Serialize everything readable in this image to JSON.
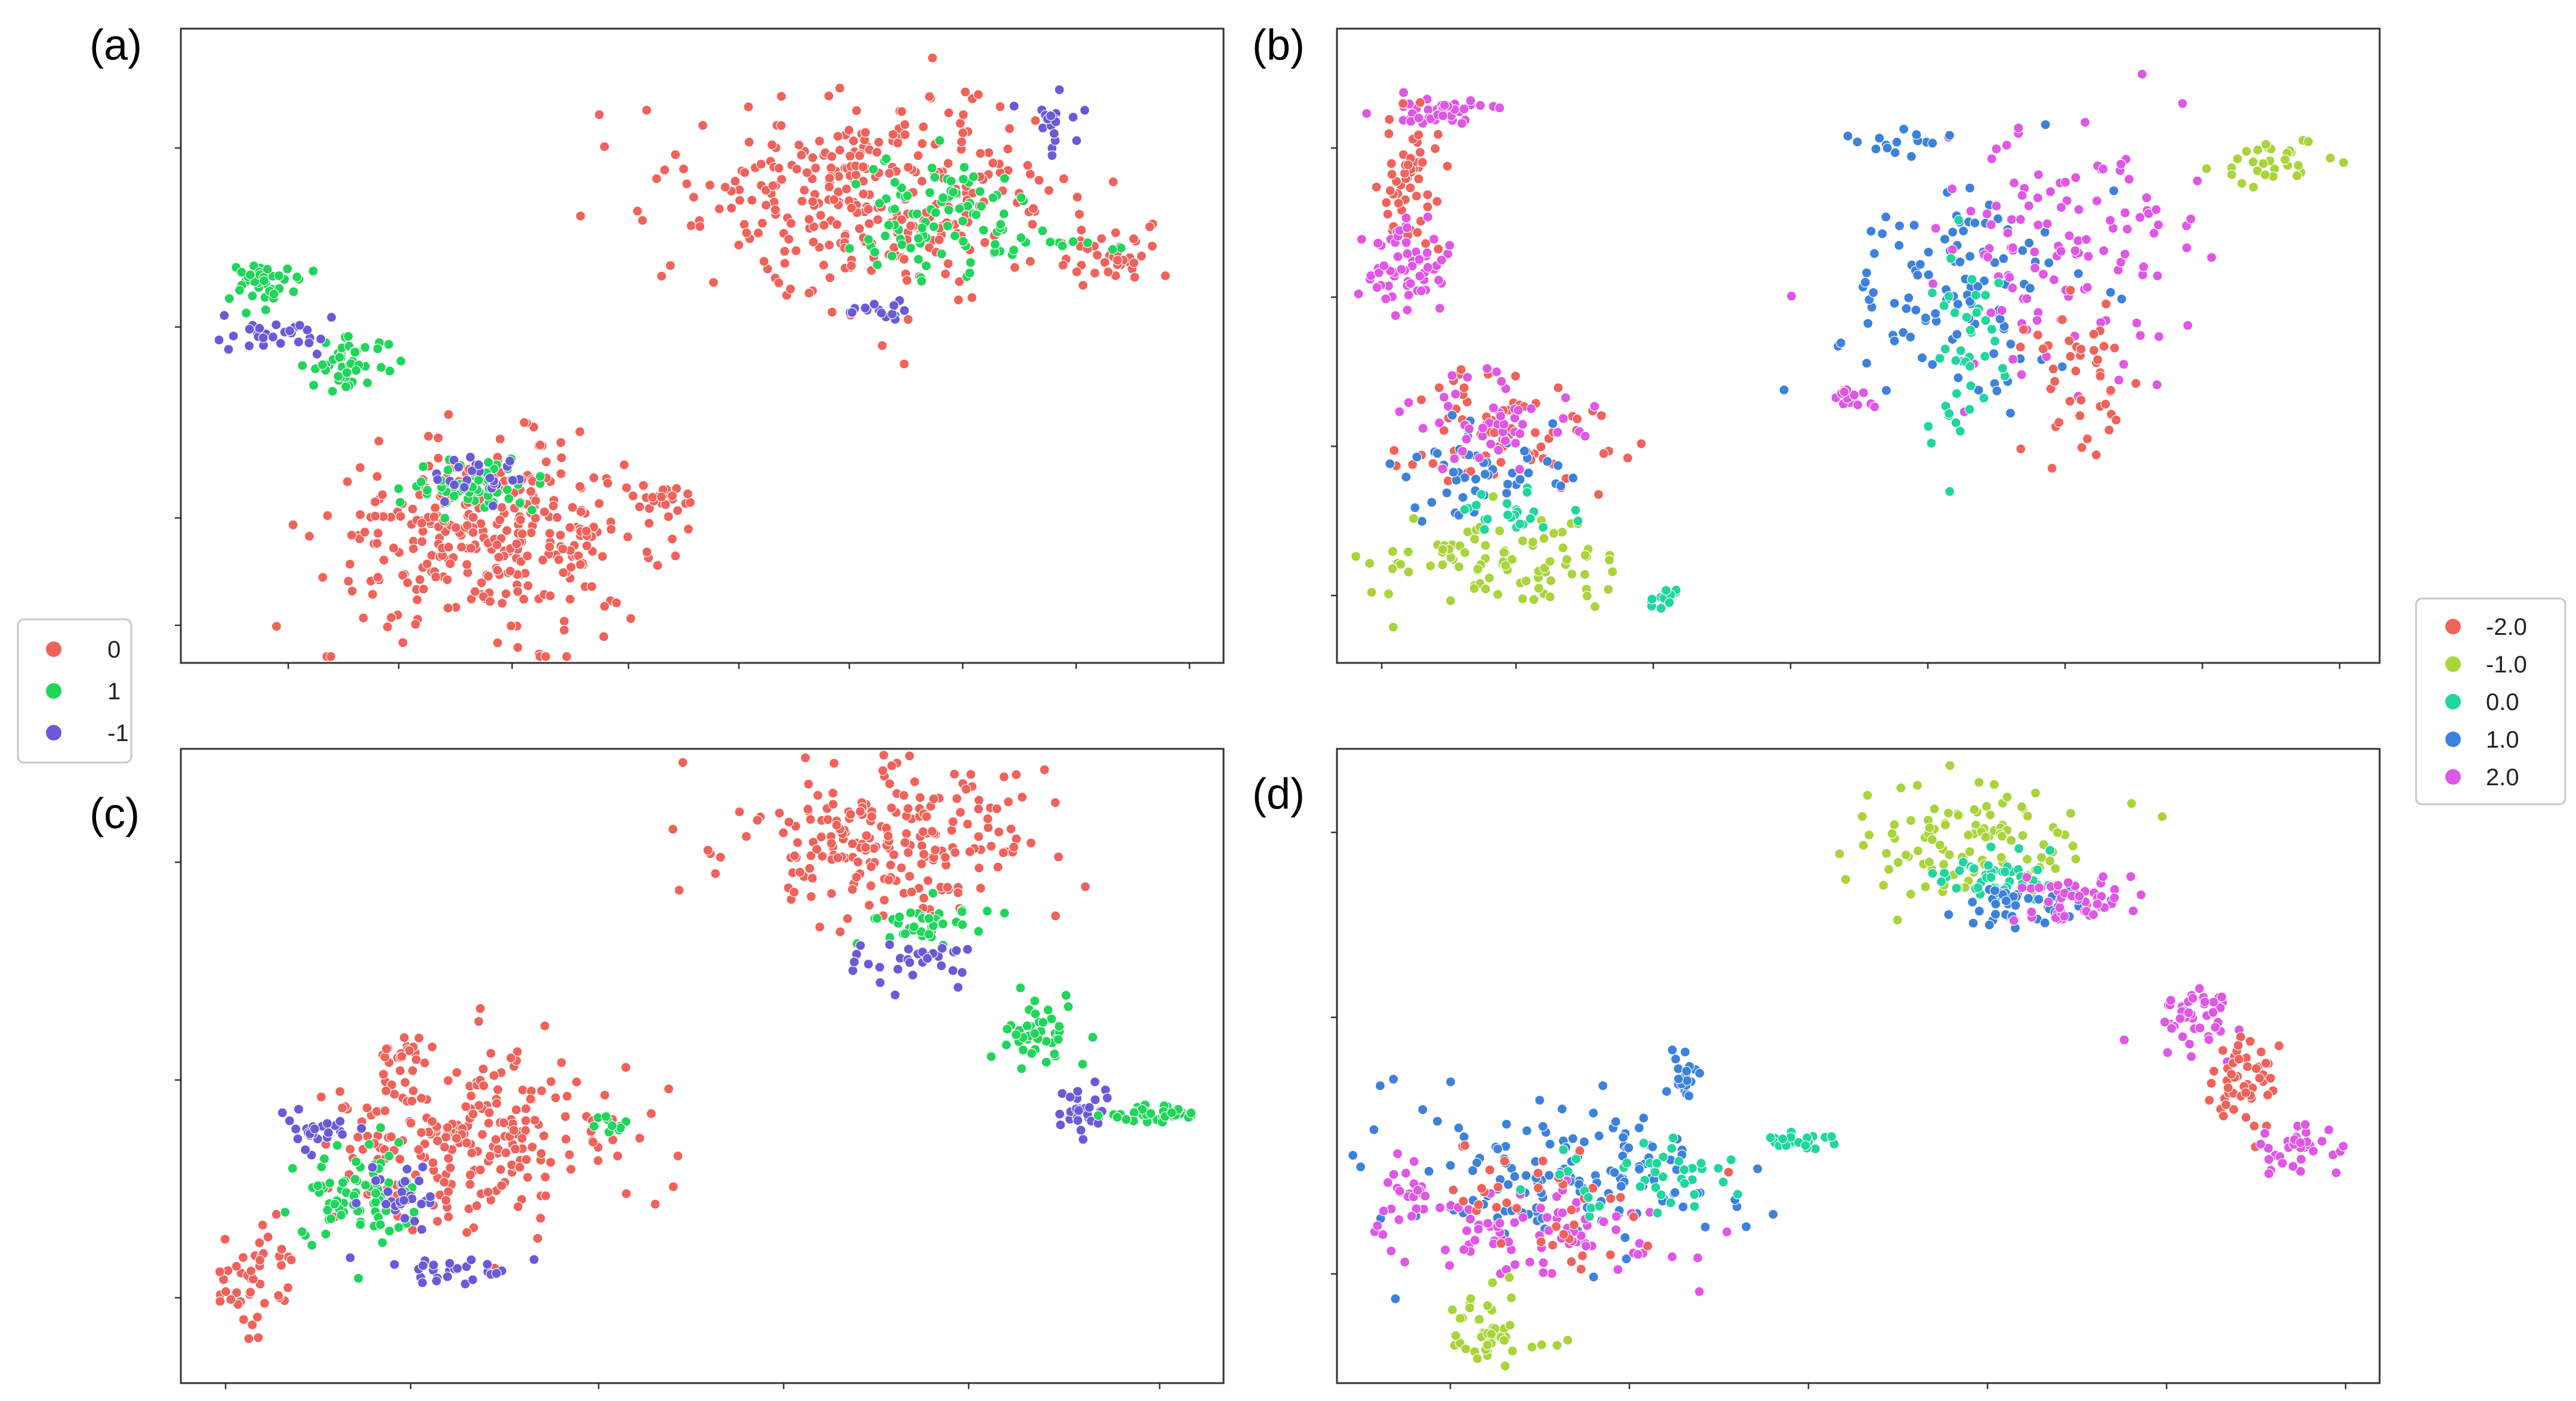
{
  "panel_labels": {
    "a": "(a)",
    "b": "(b)",
    "c": "(c)",
    "d": "(d)"
  },
  "legend_left": {
    "entries": [
      {
        "label": "0",
        "color": "#f0625a"
      },
      {
        "label": "1",
        "color": "#1fd65a"
      },
      {
        "label": "-1",
        "color": "#6a5ad8"
      }
    ]
  },
  "legend_right": {
    "entries": [
      {
        "label": "-2.0",
        "color": "#f0625a"
      },
      {
        "label": "-1.0",
        "color": "#a9d43a"
      },
      {
        "label": "0.0",
        "color": "#1fd6a0"
      },
      {
        "label": "1.0",
        "color": "#3c82dc"
      },
      {
        "label": "2.0",
        "color": "#e056e6"
      }
    ]
  },
  "chart_data": [
    {
      "panel": "(a)",
      "type": "scatter",
      "title": "",
      "xlabel": "",
      "ylabel": "",
      "axis_ticks_labeled": false,
      "xlim": [
        0,
        100
      ],
      "ylim": [
        0,
        100
      ],
      "grid": false,
      "series_colors": {
        "0": "#f0625a",
        "1": "#1fd65a",
        "-1": "#6a5ad8"
      },
      "clusters": [
        {
          "series": "0",
          "cx": 30,
          "cy": 20,
          "sx": 8,
          "sy": 7,
          "n": 330
        },
        {
          "series": "1",
          "cx": 28,
          "cy": 28,
          "sx": 3,
          "sy": 2,
          "n": 60
        },
        {
          "series": "-1",
          "cx": 29,
          "cy": 30,
          "sx": 2,
          "sy": 2,
          "n": 25
        },
        {
          "series": "1",
          "cx": 16,
          "cy": 47,
          "sx": 2,
          "sy": 2,
          "n": 45
        },
        {
          "series": "-1",
          "cx": 9,
          "cy": 52,
          "sx": 2.5,
          "sy": 1.5,
          "n": 30
        },
        {
          "series": "1",
          "cx": 8,
          "cy": 60,
          "sx": 2,
          "sy": 2,
          "n": 40
        },
        {
          "series": "0",
          "cx": 46,
          "cy": 26,
          "sx": 1.5,
          "sy": 1,
          "n": 20
        },
        {
          "series": "0",
          "cx": 67,
          "cy": 74,
          "sx": 9,
          "sy": 8,
          "n": 330
        },
        {
          "series": "1",
          "cx": 73,
          "cy": 70,
          "sx": 4,
          "sy": 5,
          "n": 90
        },
        {
          "series": "-1",
          "cx": 84,
          "cy": 86,
          "sx": 1.5,
          "sy": 2,
          "n": 20
        },
        {
          "series": "-1",
          "cx": 67,
          "cy": 55,
          "sx": 2,
          "sy": 1,
          "n": 15
        },
        {
          "series": "0",
          "cx": 90,
          "cy": 64,
          "sx": 3,
          "sy": 2,
          "n": 40
        },
        {
          "series": "1",
          "cx": 84,
          "cy": 66,
          "sx": 3,
          "sy": 1,
          "n": 12
        }
      ]
    },
    {
      "panel": "(b)",
      "type": "scatter",
      "title": "",
      "xlabel": "",
      "ylabel": "",
      "axis_ticks_labeled": false,
      "xlim": [
        0,
        100
      ],
      "ylim": [
        0,
        100
      ],
      "grid": false,
      "series_colors": {
        "-2.0": "#f0625a",
        "-1.0": "#a9d43a",
        "0.0": "#1fd6a0",
        "1.0": "#3c82dc",
        "2.0": "#e056e6"
      },
      "clusters": [
        {
          "series": "2.0",
          "cx": 10,
          "cy": 87,
          "sx": 3,
          "sy": 1.5,
          "n": 40
        },
        {
          "series": "-2.0",
          "cx": 7,
          "cy": 75,
          "sx": 1.5,
          "sy": 5,
          "n": 55
        },
        {
          "series": "2.0",
          "cx": 7,
          "cy": 62,
          "sx": 2,
          "sy": 4,
          "n": 60
        },
        {
          "series": "-2.0",
          "cx": 17,
          "cy": 37,
          "sx": 5,
          "sy": 5,
          "n": 70
        },
        {
          "series": "1.0",
          "cx": 14,
          "cy": 30,
          "sx": 4,
          "sy": 4,
          "n": 50
        },
        {
          "series": "2.0",
          "cx": 15,
          "cy": 38,
          "sx": 4,
          "sy": 4,
          "n": 50
        },
        {
          "series": "-1.0",
          "cx": 15,
          "cy": 15,
          "sx": 6,
          "sy": 3.5,
          "n": 90
        },
        {
          "series": "0.0",
          "cx": 17,
          "cy": 24,
          "sx": 3,
          "sy": 2,
          "n": 25
        },
        {
          "series": "0.0",
          "cx": 31,
          "cy": 10,
          "sx": 1,
          "sy": 1,
          "n": 15
        },
        {
          "series": "1.0",
          "cx": 60,
          "cy": 59,
          "sx": 6,
          "sy": 8,
          "n": 110
        },
        {
          "series": "2.0",
          "cx": 70,
          "cy": 66,
          "sx": 6,
          "sy": 9,
          "n": 120
        },
        {
          "series": "-2.0",
          "cx": 72,
          "cy": 44,
          "sx": 3,
          "sy": 6,
          "n": 45
        },
        {
          "series": "0.0",
          "cx": 60,
          "cy": 50,
          "sx": 2.5,
          "sy": 8,
          "n": 40
        },
        {
          "series": "-1.0",
          "cx": 89,
          "cy": 79,
          "sx": 3,
          "sy": 2,
          "n": 30
        },
        {
          "series": "2.0",
          "cx": 49,
          "cy": 42,
          "sx": 1,
          "sy": 1,
          "n": 15
        },
        {
          "series": "1.0",
          "cx": 54,
          "cy": 82,
          "sx": 2,
          "sy": 1,
          "n": 15
        }
      ]
    },
    {
      "panel": "(c)",
      "type": "scatter",
      "title": "",
      "xlabel": "",
      "ylabel": "",
      "axis_ticks_labeled": false,
      "xlim": [
        0,
        100
      ],
      "ylim": [
        0,
        100
      ],
      "grid": false,
      "series_colors": {
        "0": "#f0625a",
        "1": "#1fd65a",
        "-1": "#6a5ad8"
      },
      "clusters": [
        {
          "series": "0",
          "cx": 27,
          "cy": 38,
          "sx": 7,
          "sy": 7,
          "n": 240
        },
        {
          "series": "1",
          "cx": 17,
          "cy": 28,
          "sx": 3,
          "sy": 5,
          "n": 80
        },
        {
          "series": "-1",
          "cx": 21,
          "cy": 30,
          "sx": 2,
          "sy": 3,
          "n": 30
        },
        {
          "series": "-1",
          "cx": 13,
          "cy": 40,
          "sx": 2,
          "sy": 2,
          "n": 25
        },
        {
          "series": "0",
          "cx": 7,
          "cy": 16,
          "sx": 2,
          "sy": 4,
          "n": 45
        },
        {
          "series": "-1",
          "cx": 26,
          "cy": 18,
          "sx": 3,
          "sy": 1,
          "n": 30
        },
        {
          "series": "0",
          "cx": 21,
          "cy": 52,
          "sx": 1.5,
          "sy": 1.5,
          "n": 20
        },
        {
          "series": "1",
          "cx": 41,
          "cy": 41,
          "sx": 1.5,
          "sy": 0.7,
          "n": 10
        },
        {
          "series": "0",
          "cx": 68,
          "cy": 86,
          "sx": 8,
          "sy": 6,
          "n": 220
        },
        {
          "series": "1",
          "cx": 72,
          "cy": 72,
          "sx": 3,
          "sy": 2,
          "n": 40
        },
        {
          "series": "-1",
          "cx": 70,
          "cy": 67,
          "sx": 4,
          "sy": 2,
          "n": 30
        },
        {
          "series": "1",
          "cx": 82,
          "cy": 55,
          "sx": 2,
          "sy": 2.5,
          "n": 45
        },
        {
          "series": "-1",
          "cx": 87,
          "cy": 44,
          "sx": 1.5,
          "sy": 2,
          "n": 30
        },
        {
          "series": "1",
          "cx": 93,
          "cy": 42,
          "sx": 2.5,
          "sy": 1,
          "n": 40
        }
      ]
    },
    {
      "panel": "(d)",
      "type": "scatter",
      "title": "",
      "xlabel": "",
      "ylabel": "",
      "axis_ticks_labeled": false,
      "xlim": [
        0,
        100
      ],
      "ylim": [
        0,
        100
      ],
      "grid": false,
      "series_colors": {
        "-2.0": "#f0625a",
        "-1.0": "#a9d43a",
        "0.0": "#1fd6a0",
        "1.0": "#3c82dc",
        "2.0": "#e056e6"
      },
      "clusters": [
        {
          "series": "1.0",
          "cx": 22,
          "cy": 32,
          "sx": 9,
          "sy": 6,
          "n": 140
        },
        {
          "series": "2.0",
          "cx": 20,
          "cy": 24,
          "sx": 6,
          "sy": 4,
          "n": 80
        },
        {
          "series": "-2.0",
          "cx": 20,
          "cy": 29,
          "sx": 6,
          "sy": 5,
          "n": 40
        },
        {
          "series": "0.0",
          "cx": 30,
          "cy": 33,
          "sx": 5,
          "sy": 3,
          "n": 40
        },
        {
          "series": "1.0",
          "cx": 33,
          "cy": 48,
          "sx": 1,
          "sy": 2,
          "n": 20
        },
        {
          "series": "-1.0",
          "cx": 15,
          "cy": 8,
          "sx": 2,
          "sy": 3,
          "n": 45
        },
        {
          "series": "2.0",
          "cx": 7,
          "cy": 30,
          "sx": 1.5,
          "sy": 3,
          "n": 25
        },
        {
          "series": "0.0",
          "cx": 44,
          "cy": 38,
          "sx": 1.5,
          "sy": 1,
          "n": 20
        },
        {
          "series": "-1.0",
          "cx": 61,
          "cy": 85,
          "sx": 6,
          "sy": 4.5,
          "n": 110
        },
        {
          "series": "0.0",
          "cx": 63,
          "cy": 80,
          "sx": 3,
          "sy": 2,
          "n": 45
        },
        {
          "series": "1.0",
          "cx": 65,
          "cy": 75,
          "sx": 3,
          "sy": 2,
          "n": 40
        },
        {
          "series": "2.0",
          "cx": 71,
          "cy": 76,
          "sx": 3,
          "sy": 2,
          "n": 50
        },
        {
          "series": "2.0",
          "cx": 83,
          "cy": 57,
          "sx": 2,
          "sy": 3,
          "n": 45
        },
        {
          "series": "-2.0",
          "cx": 87,
          "cy": 47,
          "sx": 1.5,
          "sy": 4,
          "n": 50
        },
        {
          "series": "2.0",
          "cx": 92,
          "cy": 37,
          "sx": 2,
          "sy": 2,
          "n": 35
        }
      ]
    }
  ]
}
